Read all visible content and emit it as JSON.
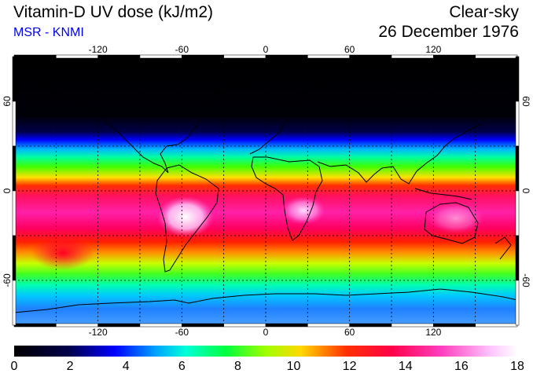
{
  "header": {
    "title": "Vitamin-D UV dose (kJ/m2)",
    "credit": "MSR - KNMI",
    "mode": "Clear-sky",
    "date": "26 December 1976"
  },
  "map": {
    "lon_ticks": [
      "-120",
      "-60",
      "0",
      "60",
      "120"
    ],
    "lat_ticks": [
      "60",
      "0",
      "-60"
    ],
    "lon_values": [
      -120,
      -60,
      0,
      60,
      120
    ],
    "lat_values": [
      60,
      0,
      -60
    ],
    "lon_grid": [
      -150,
      -120,
      -90,
      -60,
      -30,
      0,
      30,
      60,
      90,
      120,
      150
    ],
    "lat_grid": [
      60,
      30,
      0,
      -30,
      -60
    ],
    "lon_range": [
      -180,
      180
    ],
    "lat_range": [
      -90,
      90
    ]
  },
  "colorbar": {
    "labels": [
      "0",
      "2",
      "4",
      "6",
      "8",
      "10",
      "12",
      "14",
      "16",
      "18"
    ],
    "values": [
      0,
      2,
      4,
      6,
      8,
      10,
      12,
      14,
      16,
      18
    ],
    "min": 0,
    "max": 18
  },
  "colors": {
    "title_accent": "#0000ee",
    "palette": [
      "#000000",
      "#00004c",
      "#0000ff",
      "#00a0ff",
      "#00ffd8",
      "#00ff40",
      "#a0ff00",
      "#ffd800",
      "#ff3000",
      "#ff0048",
      "#ff40c0",
      "#ffc8ff",
      "#ffffff"
    ]
  }
}
